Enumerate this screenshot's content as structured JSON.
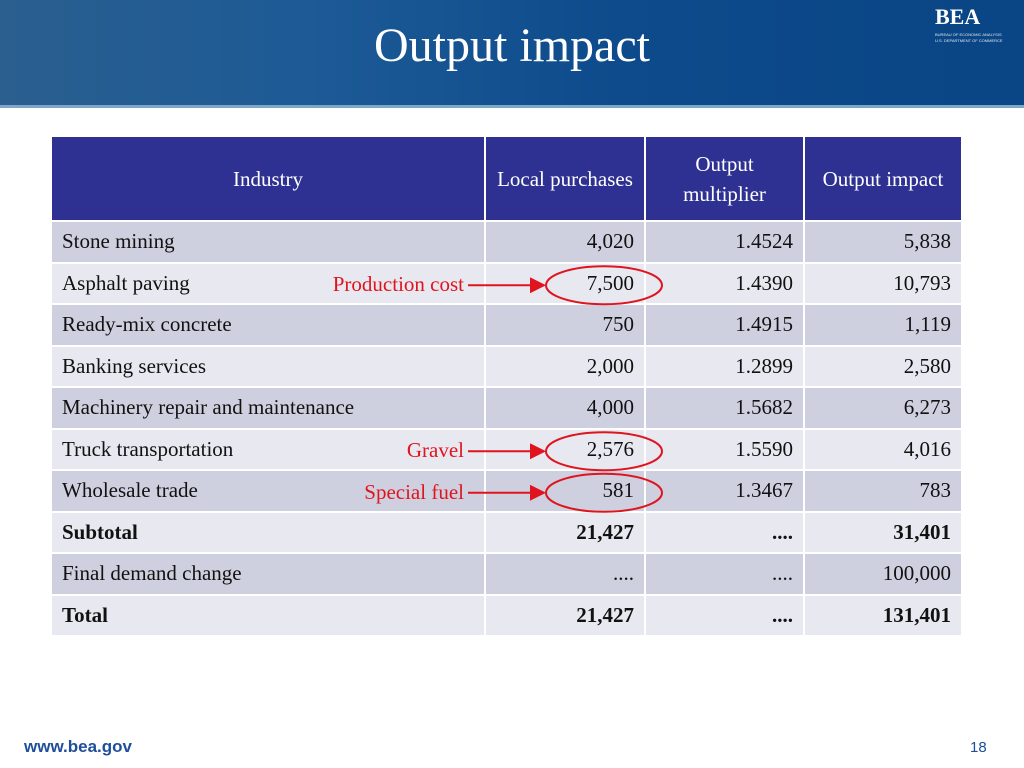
{
  "header": {
    "title": "Output impact",
    "logo": "BEA",
    "logo_sub1": "BUREAU OF ECONOMIC ANALYSIS",
    "logo_sub2": "U.S. DEPARTMENT OF COMMERCE"
  },
  "table": {
    "columns": [
      "Industry",
      "Local purchases",
      "Output multiplier",
      "Output impact"
    ],
    "rows": [
      [
        "Stone mining",
        "4,020",
        "1.4524",
        "5,838"
      ],
      [
        "Asphalt paving",
        "7,500",
        "1.4390",
        "10,793"
      ],
      [
        "Ready-mix concrete",
        "750",
        "1.4915",
        "1,119"
      ],
      [
        "Banking services",
        "2,000",
        "1.2899",
        "2,580"
      ],
      [
        "Machinery repair and maintenance",
        "4,000",
        "1.5682",
        "6,273"
      ],
      [
        "Truck transportation",
        "2,576",
        "1.5590",
        "4,016"
      ],
      [
        "Wholesale trade",
        "581",
        "1.3467",
        "783"
      ],
      [
        "Subtotal",
        "21,427",
        "....",
        "31,401"
      ],
      [
        "Final demand change",
        "....",
        "....",
        "100,000"
      ],
      [
        "Total",
        "21,427",
        "....",
        "131,401"
      ]
    ]
  },
  "annotations": [
    {
      "label": "Production cost",
      "row": 1
    },
    {
      "label": "Gravel",
      "row": 5
    },
    {
      "label": "Special fuel",
      "row": 6
    }
  ],
  "footer": {
    "url": "www.bea.gov",
    "page": "18"
  }
}
